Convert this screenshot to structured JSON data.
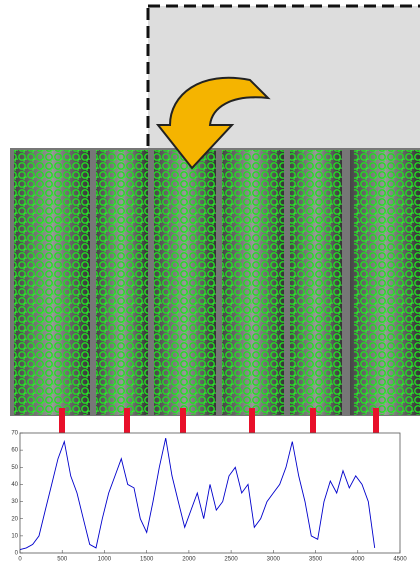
{
  "chart_data": {
    "type": "line",
    "x": [
      0,
      75,
      150,
      225,
      300,
      375,
      450,
      525,
      600,
      675,
      750,
      825,
      900,
      975,
      1050,
      1125,
      1200,
      1275,
      1350,
      1425,
      1500,
      1575,
      1650,
      1725,
      1800,
      1875,
      1950,
      2025,
      2100,
      2175,
      2250,
      2325,
      2400,
      2475,
      2550,
      2625,
      2700,
      2775,
      2850,
      2925,
      3000,
      3075,
      3150,
      3225,
      3300,
      3375,
      3450,
      3525,
      3600,
      3675,
      3750,
      3825,
      3900,
      3975,
      4050,
      4125,
      4200
    ],
    "series": [
      {
        "color": "#0000cc",
        "values": [
          2,
          3,
          5,
          10,
          25,
          40,
          55,
          65,
          45,
          35,
          20,
          5,
          3,
          20,
          35,
          45,
          55,
          40,
          38,
          20,
          12,
          30,
          50,
          67,
          45,
          30,
          15,
          25,
          35,
          20,
          40,
          25,
          30,
          45,
          50,
          35,
          40,
          15,
          20,
          30,
          35,
          40,
          50,
          65,
          45,
          30,
          10,
          8,
          30,
          42,
          35,
          48,
          38,
          45,
          40,
          30,
          3
        ]
      }
    ],
    "xlim": [
      0,
      4500
    ],
    "xticks": [
      0,
      500,
      1000,
      1500,
      2000,
      2500,
      3000,
      3500,
      4000,
      4500
    ],
    "ylim": [
      0,
      70
    ],
    "yticks": [
      0,
      10,
      20,
      30,
      40,
      50,
      60,
      70
    ],
    "grid": false
  }
}
